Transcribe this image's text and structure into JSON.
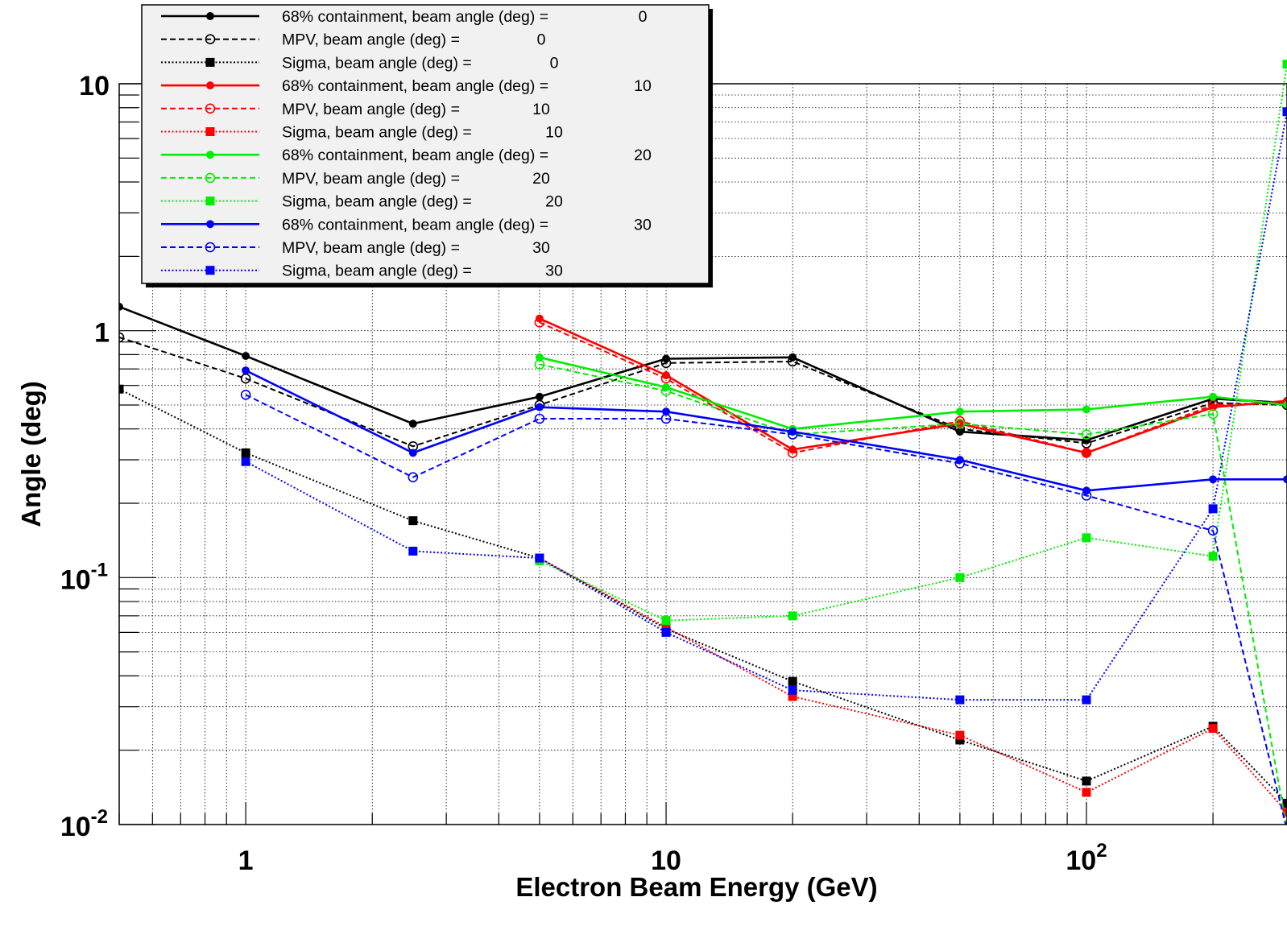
{
  "chart_data": {
    "type": "line",
    "title": "",
    "xlabel": "Electron Beam Energy (GeV)",
    "ylabel": "Angle (deg)",
    "x_scale": "log",
    "y_scale": "log",
    "xlim": [
      0.5,
      300
    ],
    "ylim": [
      0.01,
      10
    ],
    "grid": true,
    "legend_position": "top-left",
    "x_tick_labels": [
      {
        "value": 1,
        "base": "1",
        "exp": ""
      },
      {
        "value": 10,
        "base": "10",
        "exp": ""
      },
      {
        "value": 100,
        "base": "10",
        "exp": "2"
      }
    ],
    "y_tick_labels": [
      {
        "value": 10,
        "base": "10",
        "exp": ""
      },
      {
        "value": 1,
        "base": "1",
        "exp": ""
      },
      {
        "value": 0.1,
        "base": "10",
        "exp": "-1"
      },
      {
        "value": 0.01,
        "base": "10",
        "exp": "-2"
      }
    ],
    "series": [
      {
        "name": "68% containment, beam angle (deg) =",
        "angle": "0",
        "color": "#000000",
        "style": "solid",
        "marker": "dot",
        "x": [
          0.5,
          1,
          2.5,
          5,
          10,
          20,
          50,
          100,
          200,
          300
        ],
        "y": [
          1.25,
          0.79,
          0.42,
          0.54,
          0.77,
          0.78,
          0.39,
          0.36,
          0.53,
          0.51
        ]
      },
      {
        "name": "MPV, beam angle (deg) =",
        "angle": "0",
        "color": "#000000",
        "style": "dashed",
        "marker": "open-circle",
        "x": [
          0.5,
          1,
          2.5,
          5,
          10,
          20,
          50,
          100,
          200,
          300
        ],
        "y": [
          0.94,
          0.64,
          0.34,
          0.5,
          0.74,
          0.75,
          0.4,
          0.35,
          0.51,
          0.5
        ]
      },
      {
        "name": "Sigma, beam angle (deg) =",
        "angle": "0",
        "color": "#000000",
        "style": "dotted",
        "marker": "square",
        "x": [
          0.5,
          1,
          2.5,
          5,
          10,
          20,
          50,
          100,
          200,
          300
        ],
        "y": [
          0.58,
          0.32,
          0.17,
          0.12,
          0.062,
          0.038,
          0.022,
          0.015,
          0.025,
          0.0122
        ]
      },
      {
        "name": "68% containment, beam angle (deg) =",
        "angle": "10",
        "color": "#ff0000",
        "style": "solid",
        "marker": "dot",
        "x": [
          5,
          10,
          20,
          50,
          100,
          200,
          300
        ],
        "y": [
          1.12,
          0.66,
          0.33,
          0.42,
          0.32,
          0.49,
          0.52
        ]
      },
      {
        "name": "MPV, beam angle (deg) =",
        "angle": "10",
        "color": "#ff0000",
        "style": "dashed",
        "marker": "open-circle",
        "x": [
          5,
          10,
          20,
          50,
          100,
          200,
          300
        ],
        "y": [
          1.08,
          0.64,
          0.32,
          0.43,
          0.32,
          0.5,
          0.51
        ]
      },
      {
        "name": "Sigma, beam angle (deg) =",
        "angle": "10",
        "color": "#ff0000",
        "style": "dotted",
        "marker": "square",
        "x": [
          5,
          10,
          20,
          50,
          100,
          200,
          300
        ],
        "y": [
          0.12,
          0.063,
          0.033,
          0.023,
          0.0135,
          0.0245,
          0.0112
        ]
      },
      {
        "name": "68% containment, beam angle (deg) =",
        "angle": "20",
        "color": "#00ee00",
        "style": "solid",
        "marker": "dot",
        "x": [
          5,
          10,
          20,
          50,
          100,
          200,
          300
        ],
        "y": [
          0.78,
          0.59,
          0.4,
          0.47,
          0.48,
          0.54,
          0.5
        ]
      },
      {
        "name": "MPV, beam angle (deg) =",
        "angle": "20",
        "color": "#00ee00",
        "style": "dashed",
        "marker": "open-circle",
        "x": [
          5,
          10,
          20,
          50,
          100,
          200,
          300
        ],
        "y": [
          0.73,
          0.57,
          0.38,
          0.42,
          0.38,
          0.46,
          0.0095
        ]
      },
      {
        "name": "Sigma, beam angle (deg) =",
        "angle": "20",
        "color": "#00ee00",
        "style": "dotted",
        "marker": "square",
        "x": [
          5,
          10,
          20,
          50,
          100,
          200,
          300
        ],
        "y": [
          0.117,
          0.067,
          0.07,
          0.1,
          0.145,
          0.122,
          12
        ]
      },
      {
        "name": "68% containment, beam angle (deg) =",
        "angle": "30",
        "color": "#0000ff",
        "style": "solid",
        "marker": "dot",
        "x": [
          1,
          2.5,
          5,
          10,
          20,
          50,
          100,
          200,
          300
        ],
        "y": [
          0.69,
          0.32,
          0.49,
          0.47,
          0.39,
          0.3,
          0.225,
          0.25,
          0.25
        ]
      },
      {
        "name": "MPV, beam angle (deg) =",
        "angle": "30",
        "color": "#0000ff",
        "style": "dashed",
        "marker": "open-circle",
        "x": [
          1,
          2.5,
          5,
          10,
          20,
          50,
          100,
          200,
          300
        ],
        "y": [
          0.55,
          0.255,
          0.44,
          0.44,
          0.38,
          0.29,
          0.215,
          0.155,
          0.0095
        ]
      },
      {
        "name": "Sigma, beam angle (deg) =",
        "angle": "30",
        "color": "#0000ff",
        "style": "dotted",
        "marker": "square",
        "x": [
          1,
          2.5,
          5,
          10,
          20,
          50,
          100,
          200,
          300
        ],
        "y": [
          0.295,
          0.128,
          0.12,
          0.06,
          0.035,
          0.032,
          0.032,
          0.19,
          7.7
        ]
      }
    ]
  }
}
